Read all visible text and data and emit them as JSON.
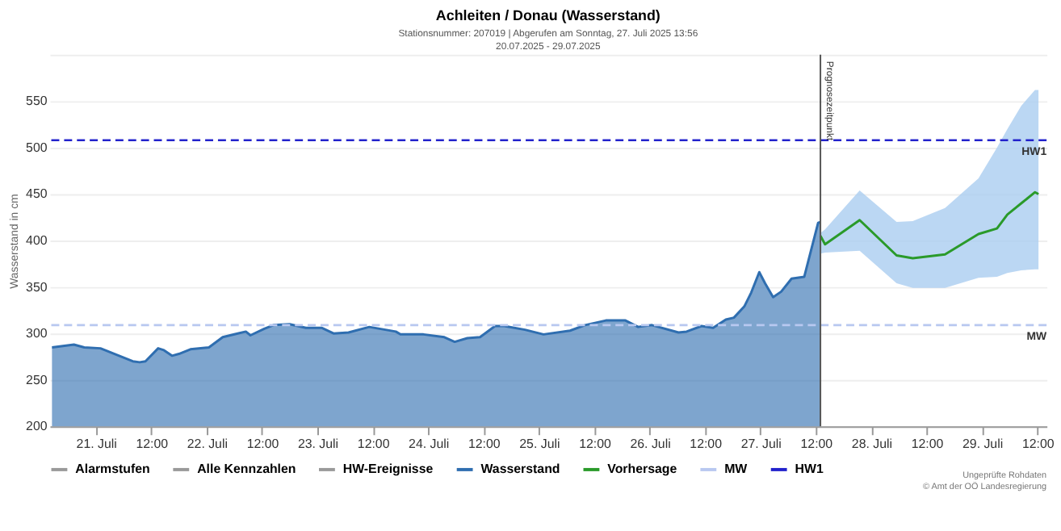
{
  "chart_data": {
    "type": "area",
    "title": "Achleiten / Donau (Wasserstand)",
    "subtitle": "Stationsnummer: 207019 | Abgerufen am Sonntag, 27. Juli 2025 13:56\n20.07.2025 - 29.07.2025",
    "ylabel": "Wasserstand in cm",
    "xlim": [
      "2025-07-20T14:00",
      "2025-07-29T14:00"
    ],
    "xticks": [
      {
        "value": "2025-07-21T00:00",
        "label": "21. Juli"
      },
      {
        "value": "2025-07-21T12:00",
        "label": "12:00"
      },
      {
        "value": "2025-07-22T00:00",
        "label": "22. Juli"
      },
      {
        "value": "2025-07-22T12:00",
        "label": "12:00"
      },
      {
        "value": "2025-07-23T00:00",
        "label": "23. Juli"
      },
      {
        "value": "2025-07-23T12:00",
        "label": "12:00"
      },
      {
        "value": "2025-07-24T00:00",
        "label": "24. Juli"
      },
      {
        "value": "2025-07-24T12:00",
        "label": "12:00"
      },
      {
        "value": "2025-07-25T00:00",
        "label": "25. Juli"
      },
      {
        "value": "2025-07-25T12:00",
        "label": "12:00"
      },
      {
        "value": "2025-07-26T00:00",
        "label": "26. Juli"
      },
      {
        "value": "2025-07-26T12:00",
        "label": "12:00"
      },
      {
        "value": "2025-07-27T00:00",
        "label": "27. Juli"
      },
      {
        "value": "2025-07-27T12:00",
        "label": "12:00"
      },
      {
        "value": "2025-07-28T00:00",
        "label": "28. Juli"
      },
      {
        "value": "2025-07-28T12:00",
        "label": "12:00"
      },
      {
        "value": "2025-07-29T00:00",
        "label": "29. Juli"
      },
      {
        "value": "2025-07-29T12:00",
        "label": "12:00"
      }
    ],
    "ylim": [
      200,
      600
    ],
    "yticks": [
      200,
      250,
      300,
      350,
      400,
      450,
      500,
      550,
      {
        "value": 600,
        "label": null
      }
    ],
    "grid": "y",
    "legend": "bottom",
    "series": [
      {
        "name": "Alarmstufen",
        "type": "line",
        "color": "#999999"
      },
      {
        "name": "Alle Kennzahlen",
        "type": "line",
        "color": "#999999"
      },
      {
        "name": "HW-Ereignisse",
        "type": "line",
        "color": "#999999"
      },
      {
        "name": "Wasserstand",
        "color": "#2f6eb0",
        "x": [
          "2025-07-20T14:30",
          "2025-07-20T19:15",
          "2025-07-20T21:30",
          "2025-07-21T01:00",
          "2025-07-21T08:00",
          "2025-07-21T09:30",
          "2025-07-21T10:45",
          "2025-07-21T13:30",
          "2025-07-21T14:45",
          "2025-07-21T16:30",
          "2025-07-21T18:00",
          "2025-07-21T20:30",
          "2025-07-22T00:30",
          "2025-07-22T03:30",
          "2025-07-22T06:45",
          "2025-07-22T08:30",
          "2025-07-22T09:30",
          "2025-07-22T12:30",
          "2025-07-22T14:30",
          "2025-07-22T18:00",
          "2025-07-22T21:30",
          "2025-07-23T01:00",
          "2025-07-23T03:30",
          "2025-07-23T06:45",
          "2025-07-23T11:15",
          "2025-07-23T14:45",
          "2025-07-23T17:00",
          "2025-07-23T18:00",
          "2025-07-23T23:00",
          "2025-07-24T03:30",
          "2025-07-24T05:45",
          "2025-07-24T08:30",
          "2025-07-24T11:15",
          "2025-07-24T14:30",
          "2025-07-24T16:30",
          "2025-07-24T21:00",
          "2025-07-25T01:00",
          "2025-07-25T06:45",
          "2025-07-25T10:00",
          "2025-07-25T14:30",
          "2025-07-25T18:45",
          "2025-07-25T21:30",
          "2025-07-26T00:30",
          "2025-07-26T06:15",
          "2025-07-26T08:00",
          "2025-07-26T11:15",
          "2025-07-26T13:45",
          "2025-07-26T16:30",
          "2025-07-26T18:15",
          "2025-07-26T20:30",
          "2025-07-26T22:00",
          "2025-07-26T23:45",
          "2025-07-27T01:00",
          "2025-07-27T02:45",
          "2025-07-27T04:30",
          "2025-07-27T06:45",
          "2025-07-27T09:30",
          "2025-07-27T12:30",
          "2025-07-27T13:00"
        ],
        "values": [
          285,
          288,
          285,
          284,
          270,
          269,
          270,
          284,
          282,
          276,
          278,
          283,
          285,
          296,
          300,
          302,
          298,
          305,
          309,
          310,
          306,
          306,
          300,
          301,
          307,
          304,
          302,
          299,
          299,
          296,
          291,
          295,
          296,
          308,
          308,
          304,
          299,
          303,
          309,
          314,
          314,
          307,
          309,
          301,
          302,
          308,
          306,
          315,
          317,
          329,
          344,
          366,
          354,
          339,
          345,
          359,
          361,
          419,
          420
        ]
      },
      {
        "name": "Vorhersage",
        "type": "line",
        "color": "#2a9a2a",
        "x": [
          "2025-07-27T13:00",
          "2025-07-27T14:00",
          "2025-07-27T21:30",
          "2025-07-28T05:30",
          "2025-07-28T09:00",
          "2025-07-28T16:00",
          "2025-07-28T23:15",
          "2025-07-29T03:15",
          "2025-07-29T05:30",
          "2025-07-29T08:30",
          "2025-07-29T11:30",
          "2025-07-29T12:15"
        ],
        "values": [
          405,
          396,
          422,
          384,
          381,
          385,
          407,
          413,
          428,
          440,
          452,
          450
        ],
        "lower": [
          386,
          387,
          389,
          354,
          349,
          349,
          360,
          361,
          365,
          368,
          369,
          369
        ],
        "upper": [
          408,
          412,
          454,
          420,
          421,
          435,
          467,
          500,
          520,
          545,
          562,
          562
        ]
      }
    ],
    "ref_lines": [
      {
        "axis": "y",
        "value": 309,
        "label": "MW",
        "color": "#b8c8f0",
        "line_style": "dashed"
      },
      {
        "axis": "y",
        "value": 508,
        "label": "HW1",
        "color": "#2222cc",
        "line_style": "dashed"
      },
      {
        "axis": "x",
        "value": "2025-07-27T13:00",
        "label": "Prognosezeitpunkt",
        "color": "#555555",
        "line_style": "solid"
      }
    ],
    "annotations": [
      "Ungeprüfte Rohdaten",
      "© Amt der OÖ Landesregierung"
    ]
  }
}
